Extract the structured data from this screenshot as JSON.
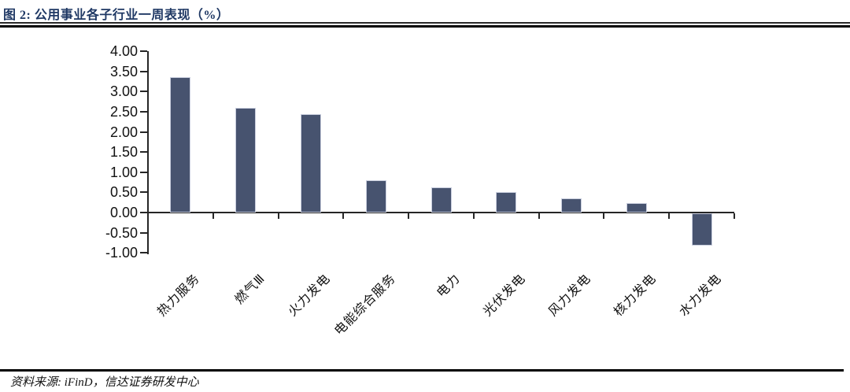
{
  "header": {
    "title": "图 2: 公用事业各子行业一周表现（%）"
  },
  "footer": {
    "source": "资料来源: iFinD，信达证券研发中心"
  },
  "colors": {
    "bar_fill": "#47536F",
    "bar_border": "#C9CEDE",
    "title_text": "#1F3864",
    "axis": "#262626"
  },
  "chart_data": {
    "type": "bar",
    "title": "公用事业各子行业一周表现（%）",
    "categories": [
      "热力服务",
      "燃气Ⅲ",
      "火力发电",
      "电能综合服务",
      "电力",
      "光伏发电",
      "风力发电",
      "核力发电",
      "水力发电"
    ],
    "values": [
      3.36,
      2.6,
      2.45,
      0.8,
      0.63,
      0.51,
      0.35,
      0.24,
      -0.81
    ],
    "xlabel": "",
    "ylabel": "",
    "ylim": [
      -1.0,
      4.0
    ],
    "ytick_step": 0.5,
    "ytick_decimals": 2,
    "grid": false,
    "legend": "none",
    "bar_color": "#47536F",
    "x_label_rotation_deg": 45
  }
}
